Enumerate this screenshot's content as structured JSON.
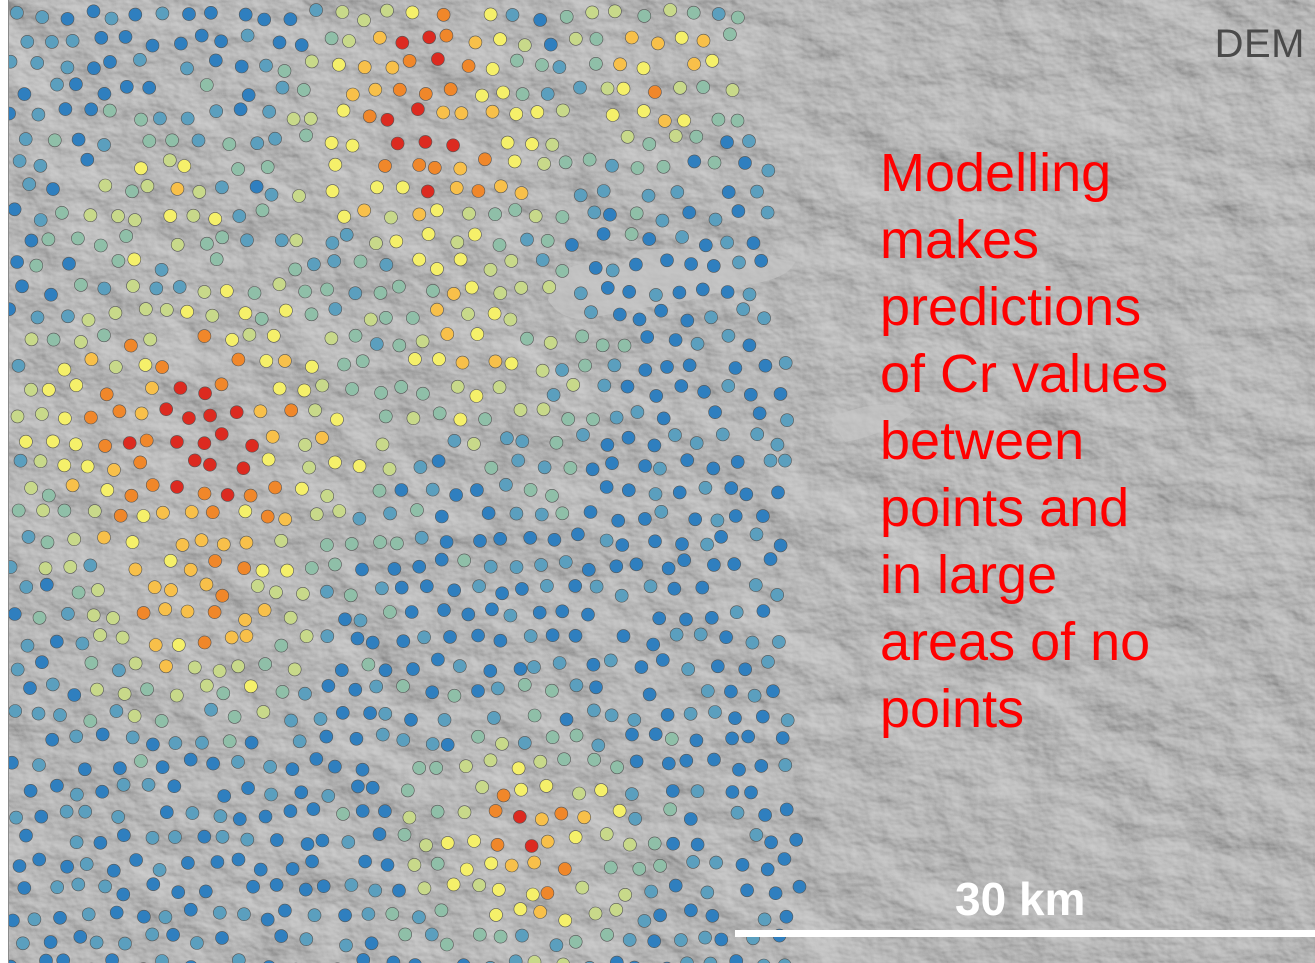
{
  "map": {
    "layer_label": "DEM",
    "annotation": "Modelling\nmakes\npredictions\nof Cr values\nbetween\npoints and\nin large\nareas of no\npoints",
    "scale_bar_label": "30 km",
    "colors": {
      "annotation_text": "#ff0000",
      "layer_label_text": "#4a4a4a",
      "scale_bar": "#ffffff",
      "point_outline": "#555555"
    },
    "point_color_ramp": [
      "#2f7fbf",
      "#5b9fbe",
      "#8fbfa8",
      "#c8d98a",
      "#f5f06a",
      "#f8c04a",
      "#f0872a",
      "#dc2a20"
    ]
  }
}
